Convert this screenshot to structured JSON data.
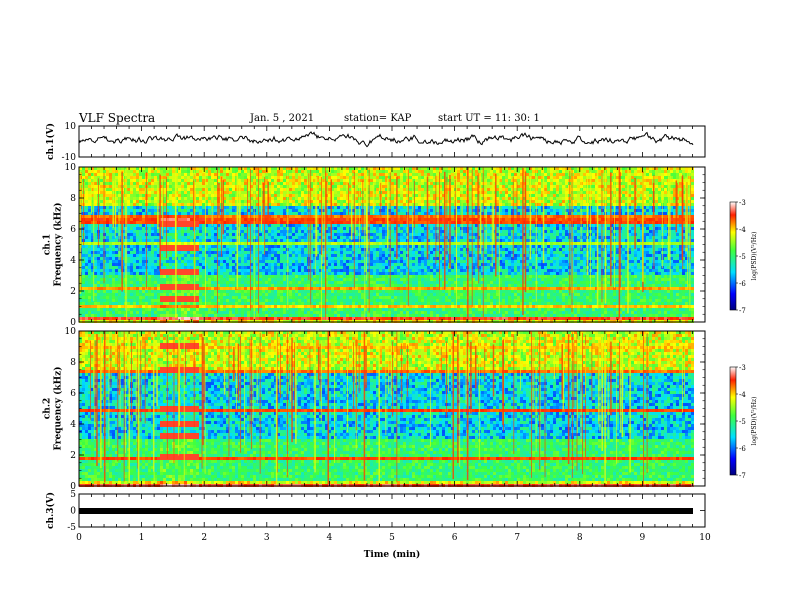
{
  "header": {
    "title": "VLF Spectra",
    "date": "Jan. 5 , 2021",
    "station": "station= KAP",
    "start": "start UT = 11: 30: 1"
  },
  "chart_data": [
    {
      "type": "line",
      "panel": "ch1-waveform",
      "ylabel": "ch.1(V)",
      "ylim": [
        -10,
        10
      ],
      "yticks": [
        "10",
        "-10"
      ],
      "xlim": [
        0,
        10
      ]
    },
    {
      "type": "heatmap",
      "panel": "ch1-spectrogram",
      "ylabel": "ch.1\nFrequency (kHz)",
      "ylabel_lines": [
        "ch.1",
        "Frequency (kHz)"
      ],
      "ylim": [
        0,
        10
      ],
      "yticks": [
        "0",
        "2",
        "4",
        "6",
        "8",
        "10"
      ],
      "xlim": [
        0,
        10
      ],
      "colorbar": {
        "label": "log(PSD)(V²/Hz)",
        "range": [
          -7,
          -3
        ],
        "ticks": [
          "-3",
          "-4",
          "-5",
          "-6",
          "-7"
        ]
      }
    },
    {
      "type": "heatmap",
      "panel": "ch2-spectrogram",
      "ylabel": "ch.2\nFrequency (kHz)",
      "ylabel_lines": [
        "ch.2",
        "Frequency (kHz)"
      ],
      "ylim": [
        0,
        10
      ],
      "yticks": [
        "0",
        "2",
        "4",
        "6",
        "8",
        "10"
      ],
      "xlim": [
        0,
        10
      ],
      "colorbar": {
        "label": "log(PSD)(V²/Hz)",
        "range": [
          -7,
          -3
        ],
        "ticks": [
          "-3",
          "-4",
          "-5",
          "-6",
          "-7"
        ]
      }
    },
    {
      "type": "line",
      "panel": "ch3-waveform",
      "ylabel": "ch.3(V)",
      "ylim": [
        -5,
        5
      ],
      "yticks": [
        "5",
        "0",
        "-5"
      ],
      "xlim": [
        0,
        10
      ],
      "xlabel": "Time (min)",
      "xticks": [
        "0",
        "1",
        "2",
        "3",
        "4",
        "5",
        "6",
        "7",
        "8",
        "9",
        "10"
      ]
    }
  ]
}
